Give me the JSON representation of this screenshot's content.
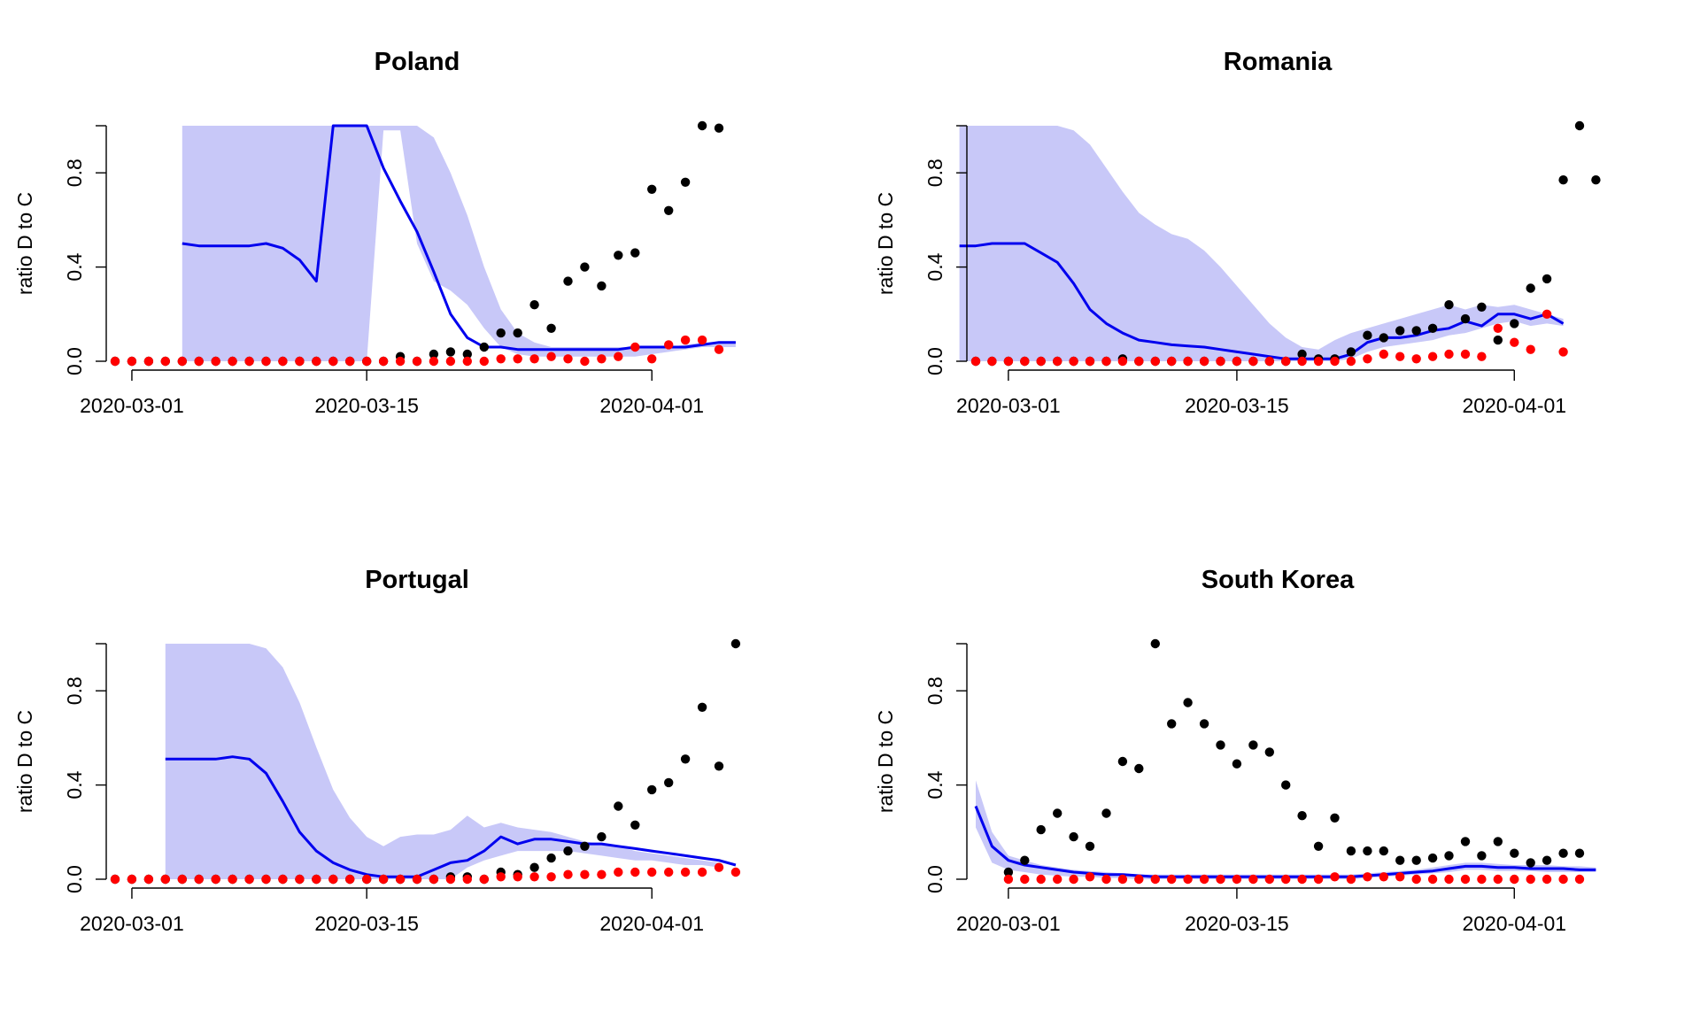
{
  "chart_data": [
    {
      "type": "scatter",
      "title": "Poland",
      "ylabel": "ratio D to C",
      "xlabel": "",
      "x_start": "2020-02-29",
      "x_end": "2020-04-05",
      "ylim": [
        0,
        1
      ],
      "yticks": [
        "0.0",
        "0.4",
        "0.8"
      ],
      "ytick_values": [
        0,
        0.4,
        0.8
      ],
      "xticks": [
        "2020-03-01",
        "2020-03-15",
        "2020-04-01"
      ],
      "band_color": "#c8c8f8",
      "line_color": "#0000ee",
      "series": [
        {
          "kind": "band",
          "start": "2020-03-04",
          "upper": [
            1,
            1,
            1,
            1,
            1,
            1,
            1,
            1,
            1,
            1,
            1,
            1,
            1,
            1,
            1,
            0.95,
            0.8,
            0.62,
            0.4,
            0.22,
            0.12,
            0.08,
            0.06,
            0.06,
            0.06,
            0.06,
            0.06,
            0.06,
            0.06,
            0.06,
            0.07,
            0.08,
            0.08,
            0.08
          ],
          "lower": [
            0,
            0,
            0,
            0,
            0,
            0,
            0,
            0,
            0,
            0,
            0,
            0,
            0.98,
            0.98,
            0.5,
            0.34,
            0.3,
            0.24,
            0.14,
            0.06,
            0.03,
            0.02,
            0.02,
            0.02,
            0.02,
            0.02,
            0.02,
            0.02,
            0.03,
            0.04,
            0.05,
            0.06,
            0.06,
            0.06
          ]
        },
        {
          "kind": "line",
          "start": "2020-03-04",
          "values": [
            0.5,
            0.49,
            0.49,
            0.49,
            0.49,
            0.5,
            0.48,
            0.43,
            0.34,
            1.0,
            1.0,
            1.0,
            0.82,
            0.68,
            0.55,
            0.38,
            0.2,
            0.1,
            0.06,
            0.06,
            0.05,
            0.05,
            0.05,
            0.05,
            0.05,
            0.05,
            0.05,
            0.06,
            0.06,
            0.06,
            0.06,
            0.07,
            0.08,
            0.08
          ]
        },
        {
          "kind": "points",
          "color": "#000000",
          "start": "2020-02-29",
          "values": [
            0,
            0,
            0,
            0,
            0,
            0,
            0,
            0,
            0,
            0,
            0,
            0,
            0,
            0,
            0,
            0,
            0,
            0.02,
            0.0,
            0.03,
            0.04,
            0.03,
            0.06,
            0.12,
            0.12,
            0.24,
            0.14,
            0.34,
            0.4,
            0.32,
            0.45,
            0.46,
            0.73,
            0.64,
            0.76,
            1.0,
            0.99
          ]
        },
        {
          "kind": "points",
          "color": "#ff0000",
          "start": "2020-02-29",
          "values": [
            0,
            0,
            0,
            0,
            0,
            0,
            0,
            0,
            0,
            0,
            0,
            0,
            0,
            0,
            0,
            0,
            0,
            0,
            0,
            0,
            0,
            0,
            0,
            0.01,
            0.01,
            0.01,
            0.02,
            0.01,
            0.0,
            0.01,
            0.02,
            0.06,
            0.01,
            0.07,
            0.09,
            0.09,
            0.05
          ]
        }
      ]
    },
    {
      "type": "scatter",
      "title": "Romania",
      "ylabel": "ratio D to C",
      "xlabel": "",
      "x_start": "2020-02-28",
      "x_end": "2020-04-05",
      "ylim": [
        0,
        1
      ],
      "yticks": [
        "0.0",
        "0.4",
        "0.8"
      ],
      "ytick_values": [
        0,
        0.4,
        0.8
      ],
      "xticks": [
        "2020-03-01",
        "2020-03-15",
        "2020-04-01"
      ],
      "band_color": "#c8c8f8",
      "line_color": "#0000ee",
      "series": [
        {
          "kind": "band",
          "start": "2020-02-27",
          "upper": [
            1,
            1,
            1,
            1,
            1,
            1,
            1,
            0.98,
            0.92,
            0.82,
            0.72,
            0.63,
            0.58,
            0.54,
            0.52,
            0.47,
            0.4,
            0.32,
            0.24,
            0.16,
            0.1,
            0.06,
            0.05,
            0.09,
            0.12,
            0.14,
            0.16,
            0.18,
            0.2,
            0.22,
            0.24,
            0.22,
            0.24,
            0.23,
            0.24,
            0.22,
            0.2,
            0.18
          ],
          "lower": [
            0,
            0,
            0,
            0,
            0,
            0,
            0,
            0,
            0,
            0,
            0,
            0,
            0,
            0,
            0,
            0,
            0,
            0,
            0,
            0,
            0,
            0,
            0,
            0,
            0.01,
            0.04,
            0.06,
            0.07,
            0.08,
            0.09,
            0.11,
            0.12,
            0.14,
            0.16,
            0.17,
            0.15,
            0.16,
            0.15
          ]
        },
        {
          "kind": "line",
          "start": "2020-02-27",
          "values": [
            0.49,
            0.49,
            0.5,
            0.5,
            0.5,
            0.46,
            0.42,
            0.33,
            0.22,
            0.16,
            0.12,
            0.09,
            0.08,
            0.07,
            0.065,
            0.06,
            0.05,
            0.04,
            0.03,
            0.02,
            0.01,
            0.01,
            0.01,
            0.01,
            0.03,
            0.08,
            0.1,
            0.1,
            0.11,
            0.13,
            0.14,
            0.17,
            0.15,
            0.2,
            0.2,
            0.18,
            0.2,
            0.16
          ]
        },
        {
          "kind": "points",
          "color": "#000000",
          "start": "2020-02-28",
          "values": [
            0,
            0,
            0,
            0,
            0,
            0,
            0,
            0,
            0,
            0.01,
            0,
            0,
            0,
            0,
            0,
            0,
            0,
            0,
            0,
            0,
            0.03,
            0.01,
            0.01,
            0.04,
            0.11,
            0.1,
            0.13,
            0.13,
            0.14,
            0.24,
            0.18,
            0.23,
            0.09,
            0.16,
            0.31,
            0.35,
            0.77,
            1.0,
            0.77
          ]
        },
        {
          "kind": "points",
          "color": "#ff0000",
          "start": "2020-02-28",
          "values": [
            0,
            0,
            0,
            0,
            0,
            0,
            0,
            0,
            0,
            0,
            0,
            0,
            0,
            0,
            0,
            0,
            0,
            0,
            0,
            0,
            0,
            0,
            0,
            0,
            0.01,
            0.03,
            0.02,
            0.01,
            0.02,
            0.03,
            0.03,
            0.02,
            0.14,
            0.08,
            0.05,
            0.2,
            0.04
          ]
        }
      ]
    },
    {
      "type": "scatter",
      "title": "Portugal",
      "ylabel": "ratio D to C",
      "xlabel": "",
      "x_start": "2020-02-29",
      "x_end": "2020-04-05",
      "ylim": [
        0,
        1
      ],
      "yticks": [
        "0.0",
        "0.4",
        "0.8"
      ],
      "ytick_values": [
        0,
        0.4,
        0.8
      ],
      "xticks": [
        "2020-03-01",
        "2020-03-15",
        "2020-04-01"
      ],
      "band_color": "#c8c8f8",
      "line_color": "#0000ee",
      "series": [
        {
          "kind": "band",
          "start": "2020-03-03",
          "upper": [
            1,
            1,
            1,
            1,
            1,
            1,
            0.98,
            0.9,
            0.75,
            0.56,
            0.38,
            0.26,
            0.18,
            0.14,
            0.18,
            0.19,
            0.19,
            0.21,
            0.27,
            0.22,
            0.24,
            0.22,
            0.21,
            0.2,
            0.18,
            0.16,
            0.15,
            0.14,
            0.12,
            0.11,
            0.1,
            0.09,
            0.08,
            0.07
          ],
          "lower": [
            0,
            0,
            0,
            0,
            0,
            0,
            0,
            0,
            0,
            0,
            0,
            0,
            0,
            0,
            0,
            0,
            0,
            0,
            0.05,
            0.08,
            0.1,
            0.12,
            0.12,
            0.12,
            0.12,
            0.11,
            0.1,
            0.09,
            0.08,
            0.08,
            0.07,
            0.06,
            0.06,
            0.05
          ]
        },
        {
          "kind": "line",
          "start": "2020-03-03",
          "values": [
            0.51,
            0.51,
            0.51,
            0.51,
            0.52,
            0.51,
            0.45,
            0.33,
            0.2,
            0.12,
            0.07,
            0.04,
            0.02,
            0.01,
            0.01,
            0.01,
            0.04,
            0.07,
            0.08,
            0.12,
            0.18,
            0.15,
            0.17,
            0.17,
            0.16,
            0.15,
            0.15,
            0.14,
            0.13,
            0.12,
            0.11,
            0.1,
            0.09,
            0.08,
            0.06
          ]
        },
        {
          "kind": "points",
          "color": "#000000",
          "start": "2020-02-29",
          "values": [
            0,
            0,
            0,
            0,
            0,
            0,
            0,
            0,
            0,
            0,
            0,
            0,
            0,
            0,
            0,
            0,
            0,
            0,
            0,
            0,
            0.01,
            0.01,
            0,
            0.03,
            0.02,
            0.05,
            0.09,
            0.12,
            0.14,
            0.18,
            0.31,
            0.23,
            0.38,
            0.41,
            0.51,
            0.73,
            0.48,
            1.0
          ]
        },
        {
          "kind": "points",
          "color": "#ff0000",
          "start": "2020-02-29",
          "values": [
            0,
            0,
            0,
            0,
            0,
            0,
            0,
            0,
            0,
            0,
            0,
            0,
            0,
            0,
            0,
            0,
            0,
            0,
            0,
            0,
            0,
            0,
            0,
            0.01,
            0.01,
            0.01,
            0.01,
            0.02,
            0.02,
            0.02,
            0.03,
            0.03,
            0.03,
            0.03,
            0.03,
            0.03,
            0.05,
            0.03
          ]
        }
      ]
    },
    {
      "type": "scatter",
      "title": "South Korea",
      "ylabel": "ratio D to C",
      "xlabel": "",
      "x_start": "2020-02-28",
      "x_end": "2020-04-05",
      "ylim": [
        0,
        1
      ],
      "yticks": [
        "0.0",
        "0.4",
        "0.8"
      ],
      "ytick_values": [
        0,
        0.4,
        0.8
      ],
      "xticks": [
        "2020-03-01",
        "2020-03-15",
        "2020-04-01"
      ],
      "band_color": "#c8c8f8",
      "line_color": "#0000ee",
      "series": [
        {
          "kind": "band",
          "start": "2020-02-28",
          "upper": [
            0.42,
            0.2,
            0.1,
            0.08,
            0.06,
            0.05,
            0.04,
            0.035,
            0.03,
            0.025,
            0.02,
            0.02,
            0.02,
            0.02,
            0.02,
            0.02,
            0.02,
            0.02,
            0.02,
            0.02,
            0.02,
            0.02,
            0.02,
            0.02,
            0.025,
            0.03,
            0.035,
            0.04,
            0.05,
            0.06,
            0.07,
            0.07,
            0.065,
            0.06,
            0.06,
            0.06,
            0.055,
            0.055,
            0.05
          ],
          "lower": [
            0.22,
            0.07,
            0.04,
            0.03,
            0.02,
            0.015,
            0.01,
            0.01,
            0.005,
            0.005,
            0,
            0,
            0,
            0,
            0,
            0,
            0,
            0,
            0,
            0,
            0,
            0,
            0,
            0,
            0.005,
            0.01,
            0.015,
            0.02,
            0.025,
            0.03,
            0.04,
            0.04,
            0.035,
            0.035,
            0.035,
            0.03,
            0.03,
            0.03,
            0.03
          ]
        },
        {
          "kind": "line",
          "start": "2020-02-28",
          "values": [
            0.31,
            0.14,
            0.08,
            0.06,
            0.05,
            0.04,
            0.03,
            0.025,
            0.02,
            0.02,
            0.015,
            0.01,
            0.01,
            0.01,
            0.01,
            0.01,
            0.01,
            0.01,
            0.01,
            0.01,
            0.01,
            0.01,
            0.01,
            0.01,
            0.015,
            0.02,
            0.025,
            0.03,
            0.035,
            0.045,
            0.055,
            0.055,
            0.05,
            0.05,
            0.045,
            0.045,
            0.045,
            0.04,
            0.04
          ]
        },
        {
          "kind": "points",
          "color": "#000000",
          "start": "2020-03-01",
          "values": [
            0.03,
            0.08,
            0.21,
            0.28,
            0.18,
            0.14,
            0.28,
            0.5,
            0.47,
            1.0,
            0.66,
            0.75,
            0.66,
            0.57,
            0.49,
            0.57,
            0.54,
            0.4,
            0.27,
            0.14,
            0.26,
            0.12,
            0.12,
            0.12,
            0.08,
            0.08,
            0.09,
            0.1,
            0.16,
            0.1,
            0.16,
            0.11,
            0.07,
            0.08,
            0.11,
            0.11
          ]
        },
        {
          "kind": "points",
          "color": "#ff0000",
          "start": "2020-03-01",
          "values": [
            0,
            0,
            0,
            0,
            0,
            0.01,
            0,
            0,
            0,
            0,
            0,
            0,
            0,
            0,
            0,
            0,
            0,
            0,
            0,
            0,
            0.01,
            0,
            0.01,
            0.01,
            0.01,
            0,
            0,
            0,
            0,
            0,
            0,
            0,
            0,
            0,
            0,
            0
          ]
        }
      ]
    }
  ]
}
